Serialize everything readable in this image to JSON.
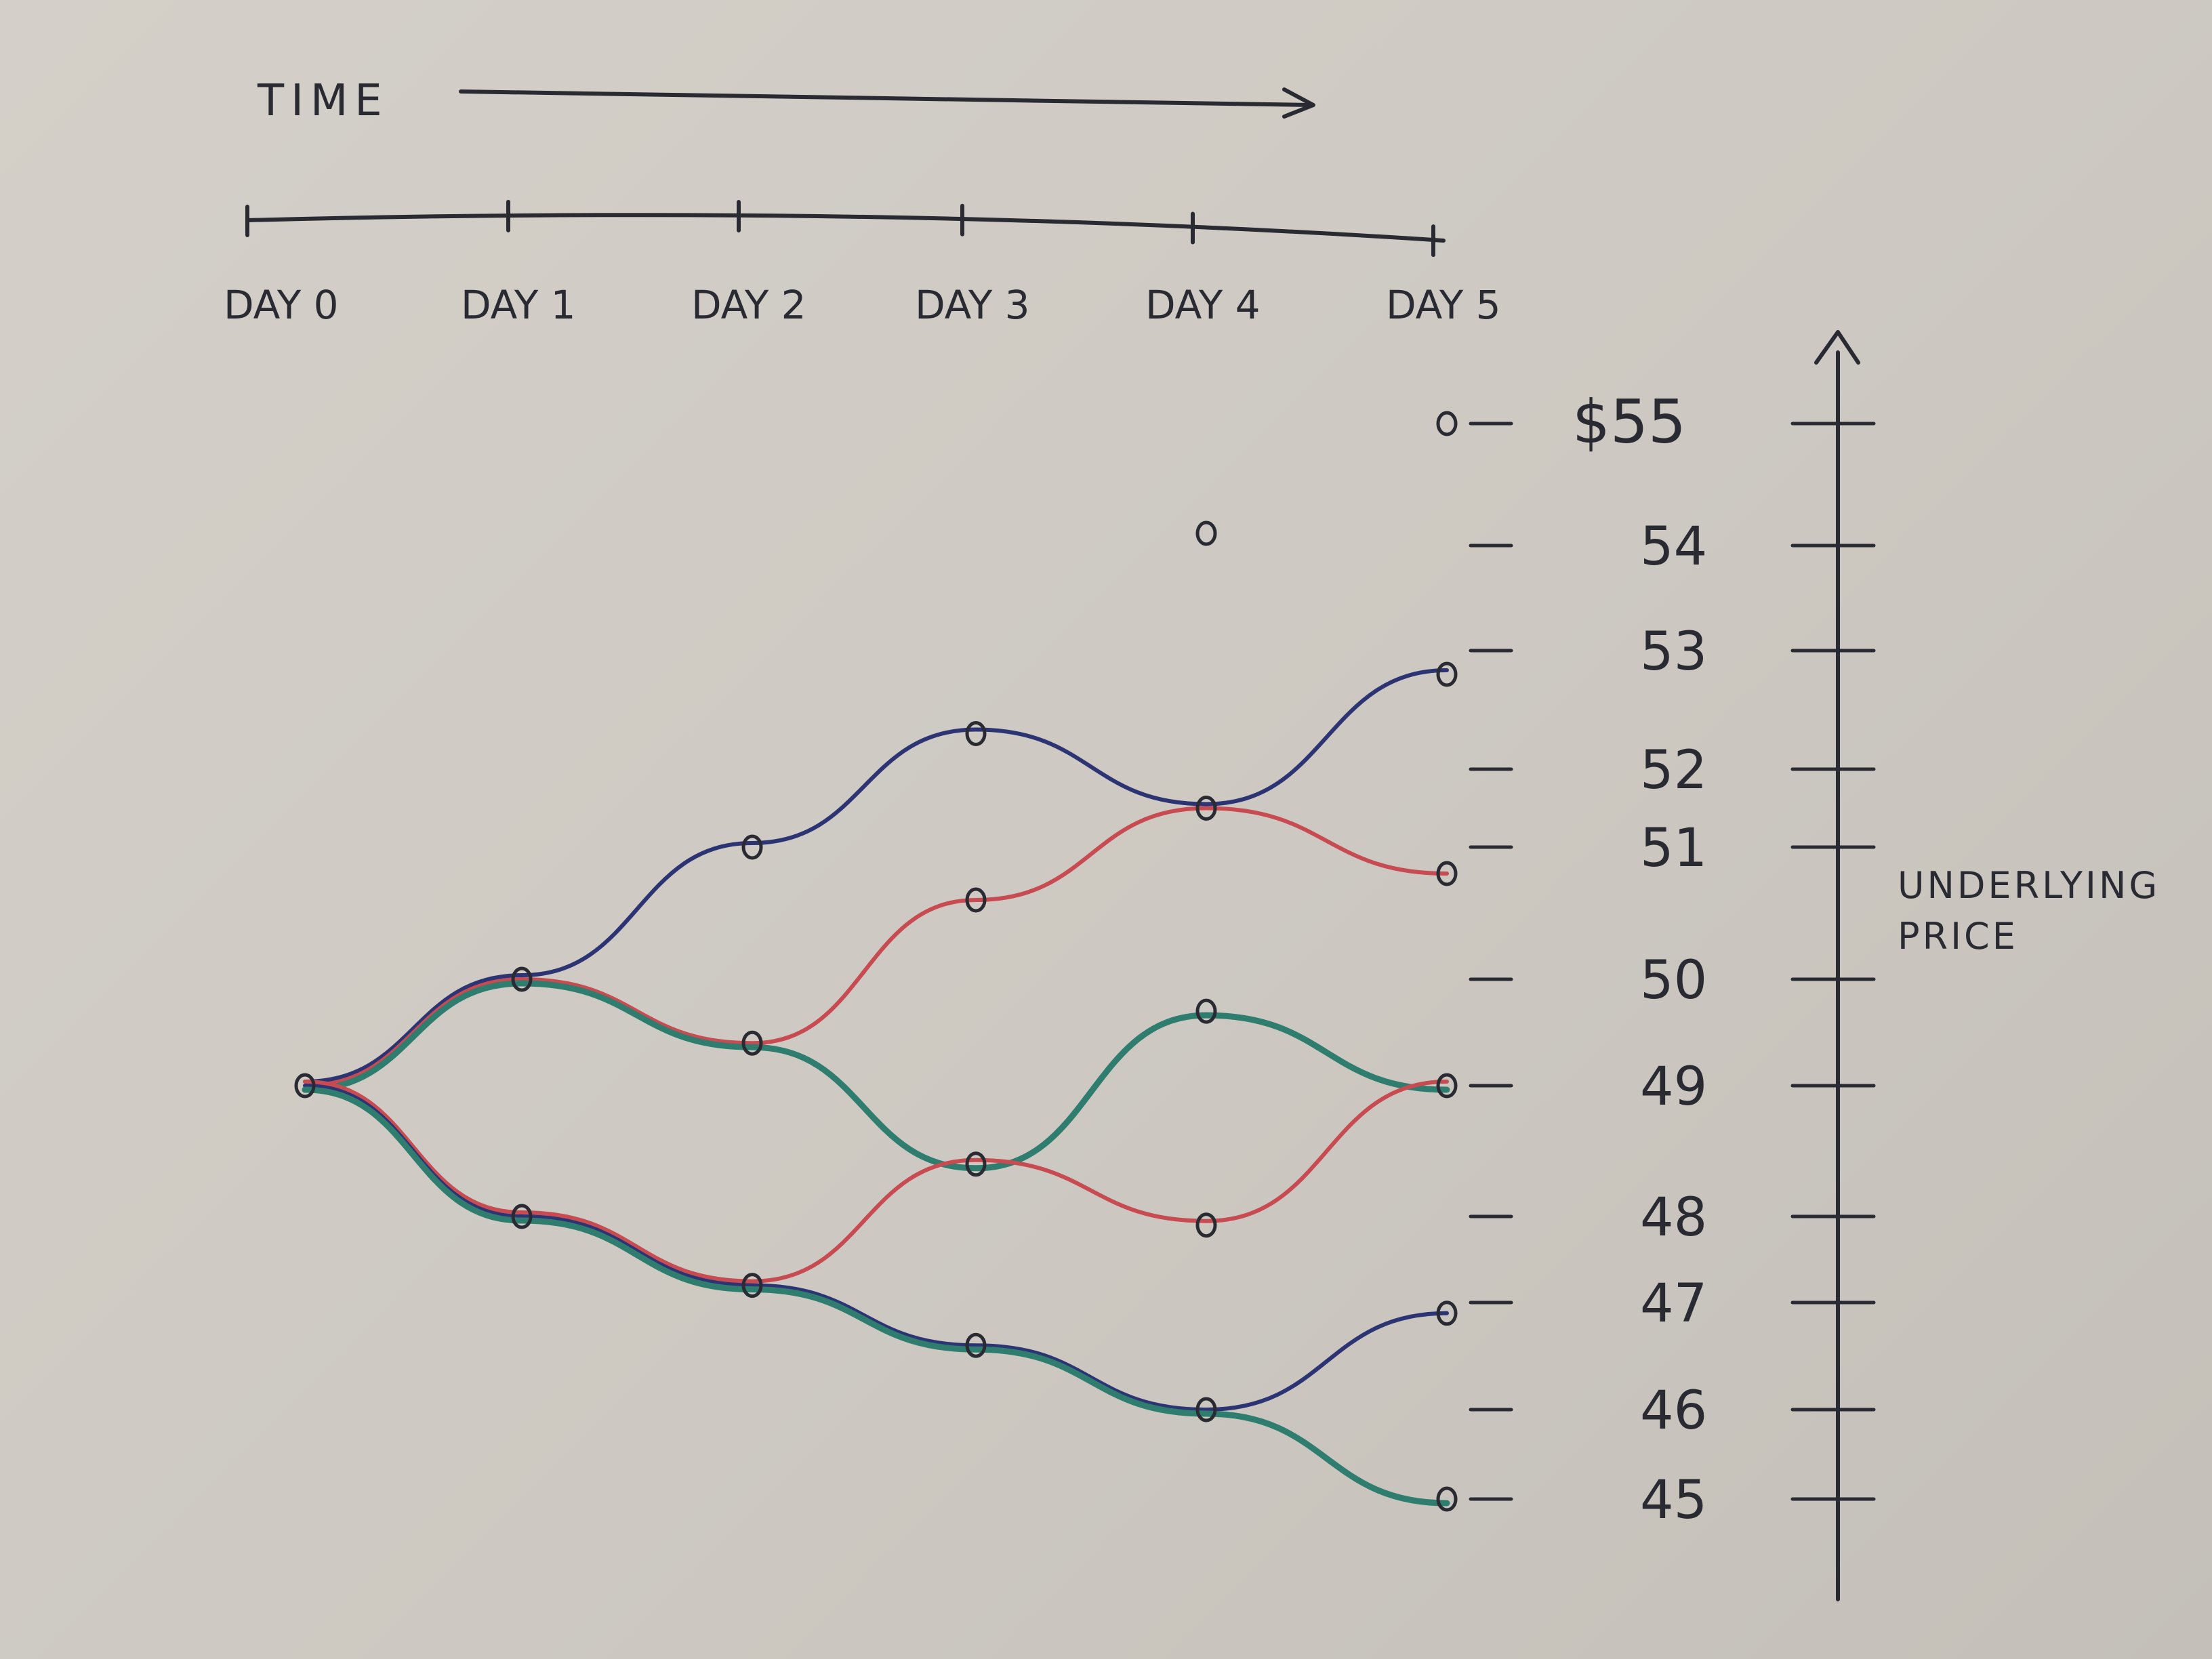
{
  "chart_data": {
    "type": "line",
    "time_label": "TIME",
    "categories": [
      "DAY 0",
      "DAY 1",
      "DAY 2",
      "DAY 3",
      "DAY 4",
      "DAY 5"
    ],
    "y_axis": {
      "label": "UNDERLYING PRICE",
      "ticks": [
        "$55",
        "54",
        "53",
        "52",
        "51",
        "50",
        "49",
        "48",
        "47",
        "46",
        "45"
      ],
      "tick_values": [
        55,
        54,
        53,
        52,
        51,
        50,
        49,
        48,
        47,
        46,
        45
      ],
      "ylim": [
        45,
        55
      ]
    },
    "nodes": [
      {
        "day": 0,
        "price": 49
      },
      {
        "day": 1,
        "price": 50
      },
      {
        "day": 1,
        "price": 48
      },
      {
        "day": 2,
        "price": 51
      },
      {
        "day": 2,
        "price": 49.4
      },
      {
        "day": 2,
        "price": 47.2
      },
      {
        "day": 3,
        "price": 52.3
      },
      {
        "day": 3,
        "price": 50.6
      },
      {
        "day": 3,
        "price": 48.4
      },
      {
        "day": 3,
        "price": 46.6
      },
      {
        "day": 4,
        "price": 54.1
      },
      {
        "day": 4,
        "price": 51.5
      },
      {
        "day": 4,
        "price": 49.7
      },
      {
        "day": 4,
        "price": 47.9
      },
      {
        "day": 4,
        "price": 46
      },
      {
        "day": 5,
        "price": 55
      },
      {
        "day": 5,
        "price": 52.8
      },
      {
        "day": 5,
        "price": 50.8
      },
      {
        "day": 5,
        "price": 49
      },
      {
        "day": 5,
        "price": 46.9
      },
      {
        "day": 5,
        "price": 45
      }
    ],
    "series": [
      {
        "color": "#2c3474",
        "values": [
          49,
          50,
          51,
          52.3,
          51.5,
          52.8
        ]
      },
      {
        "color": "#c84b52",
        "values": [
          49,
          50,
          49.4,
          50.6,
          51.5,
          50.8
        ]
      },
      {
        "color": "#2e7d6e",
        "values": [
          49,
          50,
          49.4,
          48.4,
          49.7,
          49
        ]
      },
      {
        "color": "#c84b52",
        "values": [
          49,
          48,
          47.2,
          48.4,
          47.9,
          49
        ]
      },
      {
        "color": "#2c3474",
        "values": [
          49,
          48,
          47.2,
          46.6,
          46,
          46.9
        ]
      },
      {
        "color": "#2e7d6e",
        "values": [
          49,
          48,
          47.2,
          46.6,
          46,
          45
        ]
      }
    ]
  }
}
